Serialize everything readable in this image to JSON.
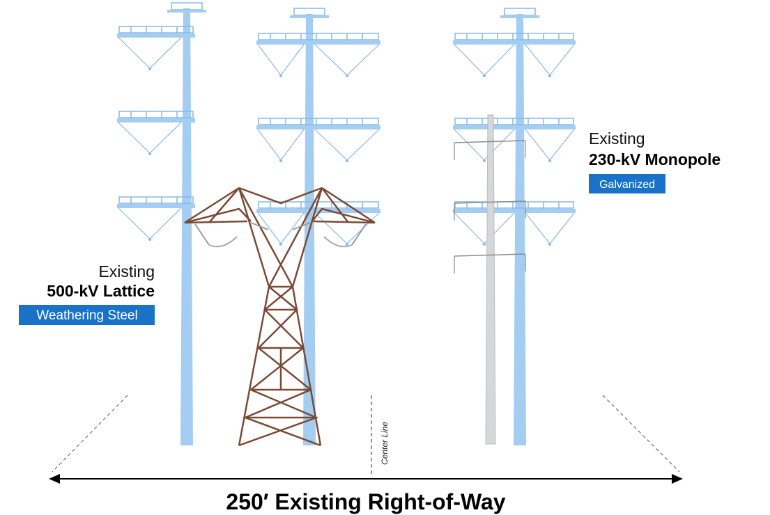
{
  "labels": [
    {
      "status": "Existing",
      "structure": "500-kV Lattice",
      "finish": "Weathering Steel"
    },
    {
      "status": "Existing",
      "structure": "230-kV Monopole",
      "finish": "Galvanized"
    }
  ],
  "center_line": "Center Line",
  "footer": "250′ Existing Right-of-Way"
}
